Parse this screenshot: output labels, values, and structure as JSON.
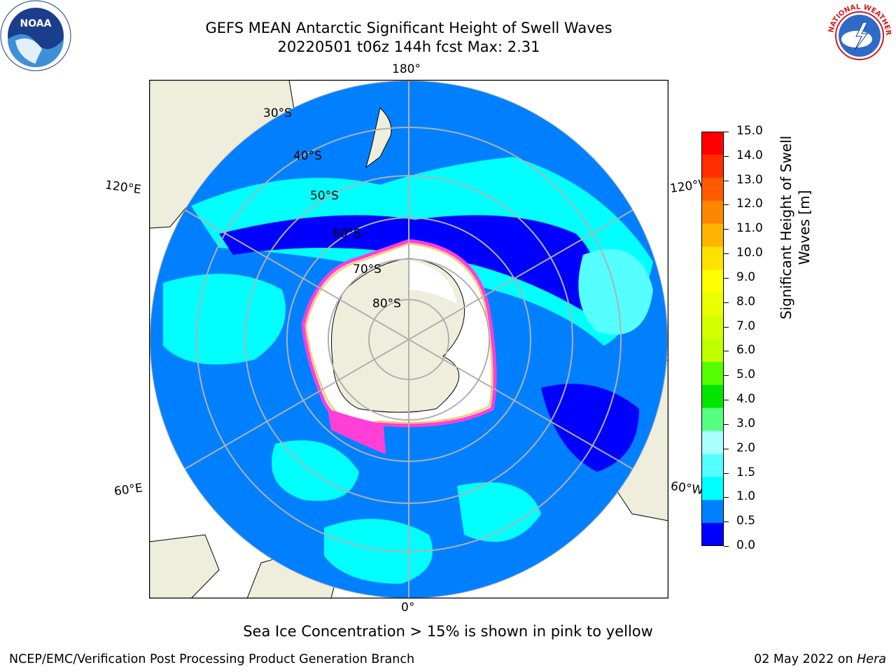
{
  "title": {
    "line1": "GEFS MEAN Antarctic Significant Height of Swell Waves",
    "line2": "20220501 t06z 144h fcst   Max: 2.31"
  },
  "logos": {
    "left": "noaa-logo",
    "right": "nws-logo",
    "left_text": "NOAA",
    "right_text": "NATIONAL WEATHER SERVICE"
  },
  "map": {
    "projection": "south-polar-stereographic",
    "longitude_labels": {
      "top": "180°",
      "left_upper": "120°E",
      "right_upper": "120°W",
      "left_lower": "60°E",
      "right_lower": "60°W",
      "bottom": "0°"
    },
    "latitude_labels": [
      "30°S",
      "40°S",
      "50°S",
      "60°S",
      "70°S",
      "80°S"
    ],
    "colors": {
      "land": "#efeedc",
      "ice_free_antarctic": "#ffffff",
      "ocean_low": "#0000ff",
      "ocean_mid": "#0080ff",
      "ocean_high": "#00ffff",
      "ocean_higher": "#55ffff",
      "sea_ice_edge_pink": "#ff3fd8",
      "sea_ice_edge_yellow": "#ffc04a",
      "graticule": "#b0b0b0"
    }
  },
  "colorbar": {
    "title_line1": "Significant Height of Swell",
    "title_line2": "Waves [m]",
    "ticks": [
      "15.0",
      "14.0",
      "13.0",
      "12.0",
      "11.0",
      "10.0",
      "9.0",
      "8.0",
      "7.0",
      "6.0",
      "5.0",
      "4.0",
      "3.0",
      "2.0",
      "1.5",
      "1.0",
      "0.5",
      "0.0"
    ],
    "colors_top_to_bottom": [
      "#ff0000",
      "#ff2d00",
      "#ff5a00",
      "#ff8700",
      "#ffb400",
      "#ffe100",
      "#ffff00",
      "#eaff00",
      "#d4ff00",
      "#bfff00",
      "#55ff00",
      "#00e600",
      "#55ff80",
      "#aaffff",
      "#55ffff",
      "#00ffff",
      "#0080ff",
      "#0000ff"
    ]
  },
  "footer": {
    "note": "Sea Ice Concentration > 15% is shown in pink to yellow",
    "credit_left": "NCEP/EMC/Verification Post Processing Product Generation Branch",
    "credit_right_prefix": "02 May 2022 on ",
    "credit_right_host": "Hera"
  }
}
